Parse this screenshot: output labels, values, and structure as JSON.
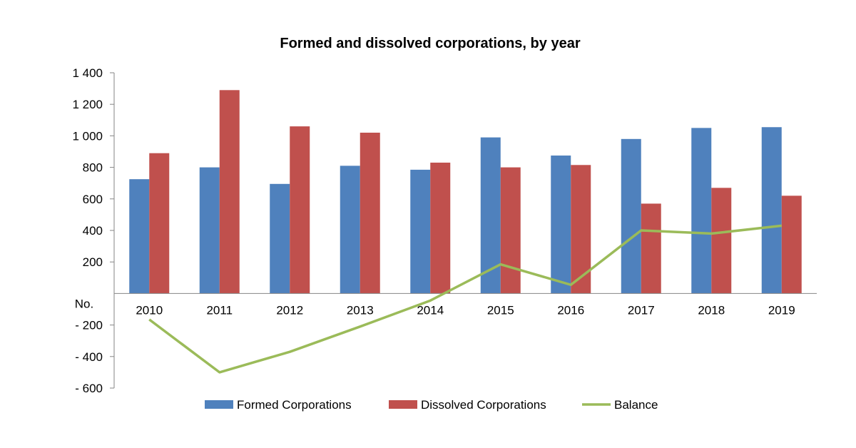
{
  "chart_data": {
    "type": "bar",
    "title": "Formed and dissolved corporations, by year",
    "ylabel": "No.",
    "xlabel": "",
    "categories": [
      "2010",
      "2011",
      "2012",
      "2013",
      "2014",
      "2015",
      "2016",
      "2017",
      "2018",
      "2019"
    ],
    "series": [
      {
        "name": "Formed Corporations",
        "type": "bar",
        "color": "#4F81BD",
        "values": [
          725,
          800,
          695,
          810,
          785,
          990,
          875,
          980,
          1050,
          1055
        ]
      },
      {
        "name": "Dissolved Corporations",
        "type": "bar",
        "color": "#C0504D",
        "values": [
          890,
          1290,
          1060,
          1020,
          830,
          800,
          815,
          570,
          670,
          620
        ]
      },
      {
        "name": "Balance",
        "type": "line",
        "color": "#9BBB59",
        "values": [
          -165,
          -500,
          -370,
          -210,
          -45,
          185,
          55,
          400,
          380,
          430
        ]
      }
    ],
    "ylim": [
      -600,
      1400
    ],
    "yticks": [
      -600,
      -400,
      -200,
      200,
      400,
      600,
      800,
      1000,
      1200,
      1400
    ],
    "ytick_labels": [
      "- 600",
      "- 400",
      "- 200",
      "200",
      "400",
      "600",
      "800",
      "1 000",
      "1 200",
      "1 400"
    ],
    "grid": false,
    "legend": "bottom"
  }
}
